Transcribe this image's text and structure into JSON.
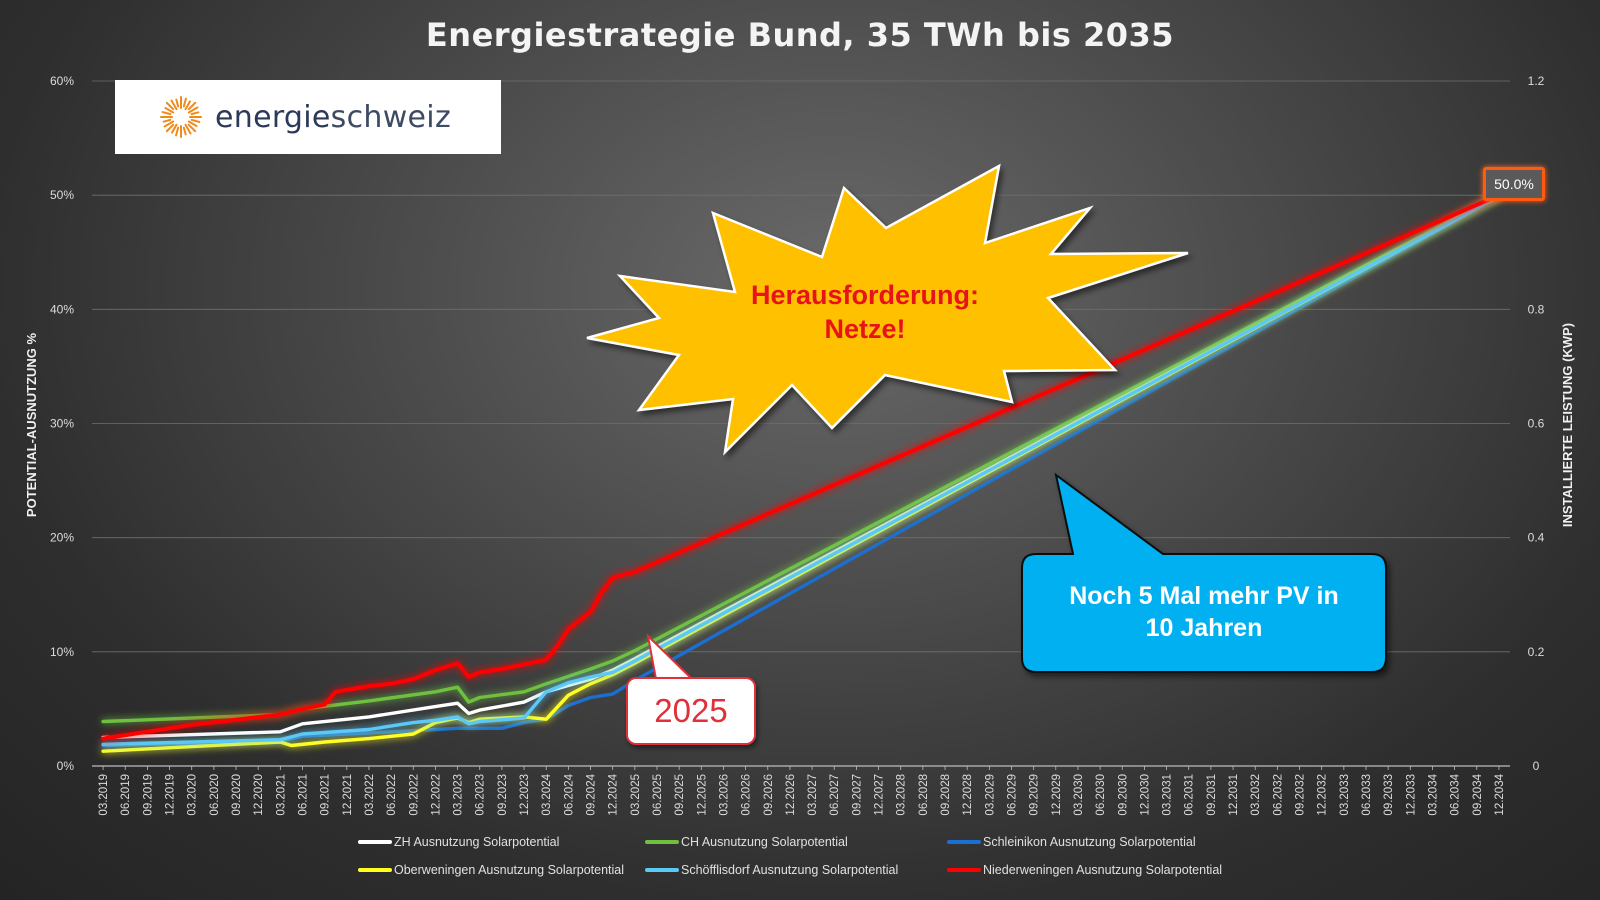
{
  "title": "Energiestrategie Bund, 35 TWh bis 2035",
  "logo": {
    "text_bold": "energie",
    "text_light": "schweiz",
    "sun_color": "#f28a1a"
  },
  "annotations": {
    "burst": {
      "line1": "Herausforderung:",
      "line2": "Netze!",
      "fill": "#ffc000",
      "text_color": "#e8121a"
    },
    "blue_callout": {
      "line1": "Noch 5 Mal mehr PV in",
      "line2": "10 Jahren",
      "fill": "#00b0f0"
    },
    "year_callout": "2025",
    "end_value_label": "50.0%"
  },
  "chart_data": {
    "type": "line",
    "title": "Energiestrategie Bund, 35 TWh bis 2035",
    "ylabel": "POTENTIAL-AUSNUTZUNG %",
    "y2label": "INSTALLIERTE LEISTUNG (KWP)",
    "ylim": [
      0,
      60
    ],
    "y2lim": [
      0,
      1.2
    ],
    "yticks": [
      "0%",
      "10%",
      "20%",
      "30%",
      "40%",
      "50%",
      "60%"
    ],
    "y2ticks": [
      "0",
      "0.2",
      "0.4",
      "0.6",
      "0.8",
      "1",
      "1.2"
    ],
    "grid": true,
    "legend_position": "bottom",
    "x_labels": [
      "03.2019",
      "06.2019",
      "09.2019",
      "12.2019",
      "03.2020",
      "06.2020",
      "09.2020",
      "12.2020",
      "03.2021",
      "06.2021",
      "09.2021",
      "12.2021",
      "03.2022",
      "06.2022",
      "09.2022",
      "12.2022",
      "03.2023",
      "06.2023",
      "09.2023",
      "12.2023",
      "03.2024",
      "06.2024",
      "09.2024",
      "12.2024",
      "03.2025",
      "06.2025",
      "09.2025",
      "12.2025",
      "03.2026",
      "06.2026",
      "09.2026",
      "12.2026",
      "03.2027",
      "06.2027",
      "09.2027",
      "12.2027",
      "03.2028",
      "06.2028",
      "09.2028",
      "12.2028",
      "03.2029",
      "06.2029",
      "09.2029",
      "12.2029",
      "03.2030",
      "06.2030",
      "09.2030",
      "12.2030",
      "03.2031",
      "06.2031",
      "09.2031",
      "12.2031",
      "03.2032",
      "06.2032",
      "09.2032",
      "12.2032",
      "03.2033",
      "06.2033",
      "09.2033",
      "12.2033",
      "03.2034",
      "06.2034",
      "09.2034",
      "12.2034"
    ],
    "series": [
      {
        "name": "ZH Ausnutzung Solarpotential",
        "color": "#ffffff",
        "glow": false,
        "points": [
          [
            0,
            2.5
          ],
          [
            8,
            3.0
          ],
          [
            9,
            3.7
          ],
          [
            12,
            4.3
          ],
          [
            15,
            5.2
          ],
          [
            16,
            5.5
          ],
          [
            16.5,
            4.6
          ],
          [
            17,
            4.9
          ],
          [
            19,
            5.6
          ],
          [
            20,
            6.5
          ],
          [
            22,
            7.6
          ],
          [
            23,
            8.4
          ],
          [
            24,
            9.4
          ],
          [
            63,
            50.0
          ]
        ]
      },
      {
        "name": "CH Ausnutzung Solarpotential",
        "color": "#70c040",
        "glow": true,
        "points": [
          [
            0,
            3.9
          ],
          [
            8,
            4.5
          ],
          [
            9,
            5.0
          ],
          [
            12,
            5.7
          ],
          [
            15,
            6.5
          ],
          [
            16,
            6.9
          ],
          [
            16.5,
            5.6
          ],
          [
            17,
            6.0
          ],
          [
            19,
            6.5
          ],
          [
            20,
            7.2
          ],
          [
            22,
            8.5
          ],
          [
            23,
            9.2
          ],
          [
            24,
            10.1
          ],
          [
            63,
            50.0
          ]
        ]
      },
      {
        "name": "Schleinikon Ausnutzung Solarpotential",
        "color": "#1a6fd0",
        "glow": false,
        "points": [
          [
            0,
            1.8
          ],
          [
            8,
            2.2
          ],
          [
            9,
            2.6
          ],
          [
            12,
            2.9
          ],
          [
            15,
            3.2
          ],
          [
            16,
            3.3
          ],
          [
            18,
            3.3
          ],
          [
            19,
            3.8
          ],
          [
            20,
            4.1
          ],
          [
            21,
            5.3
          ],
          [
            22,
            6.0
          ],
          [
            23,
            6.3
          ],
          [
            24,
            7.5
          ],
          [
            63,
            49.9
          ]
        ]
      },
      {
        "name": "Oberweningen Ausnutzung Solarpotential",
        "color": "#ffff20",
        "glow": true,
        "points": [
          [
            0,
            1.3
          ],
          [
            8,
            2.1
          ],
          [
            8.5,
            1.8
          ],
          [
            10,
            2.1
          ],
          [
            12,
            2.4
          ],
          [
            14,
            2.8
          ],
          [
            15,
            3.8
          ],
          [
            16,
            4.2
          ],
          [
            16.5,
            3.8
          ],
          [
            17,
            4.1
          ],
          [
            19,
            4.3
          ],
          [
            20,
            4.1
          ],
          [
            21,
            6.2
          ],
          [
            22,
            7.2
          ],
          [
            23,
            8.0
          ],
          [
            24,
            9.0
          ],
          [
            63,
            49.9
          ]
        ]
      },
      {
        "name": "Schöfflisdorf Ausnutzung Solarpotential",
        "color": "#5bc8f5",
        "glow": true,
        "points": [
          [
            0,
            1.9
          ],
          [
            8,
            2.3
          ],
          [
            9,
            2.8
          ],
          [
            12,
            3.2
          ],
          [
            14,
            3.8
          ],
          [
            15,
            4.0
          ],
          [
            16,
            4.3
          ],
          [
            16.5,
            3.7
          ],
          [
            17,
            3.9
          ],
          [
            19,
            4.2
          ],
          [
            20,
            6.5
          ],
          [
            21,
            7.3
          ],
          [
            22,
            7.8
          ],
          [
            23,
            8.2
          ],
          [
            24,
            9.2
          ],
          [
            63,
            49.9
          ]
        ]
      },
      {
        "name": "Niederweningen Ausnutzung Solarpotential",
        "color": "#ff0000",
        "glow": true,
        "points": [
          [
            0,
            2.4
          ],
          [
            4,
            3.6
          ],
          [
            8,
            4.5
          ],
          [
            9,
            5.0
          ],
          [
            10,
            5.4
          ],
          [
            10.5,
            6.5
          ],
          [
            12,
            7.0
          ],
          [
            13,
            7.2
          ],
          [
            14,
            7.6
          ],
          [
            15,
            8.4
          ],
          [
            16,
            9.0
          ],
          [
            16.5,
            7.8
          ],
          [
            17,
            8.2
          ],
          [
            18,
            8.5
          ],
          [
            19,
            8.9
          ],
          [
            20,
            9.3
          ],
          [
            20.5,
            10.5
          ],
          [
            21,
            12.0
          ],
          [
            22,
            13.5
          ],
          [
            22.5,
            15.2
          ],
          [
            23,
            16.5
          ],
          [
            24,
            17.0
          ],
          [
            63,
            50.0
          ]
        ]
      }
    ]
  }
}
